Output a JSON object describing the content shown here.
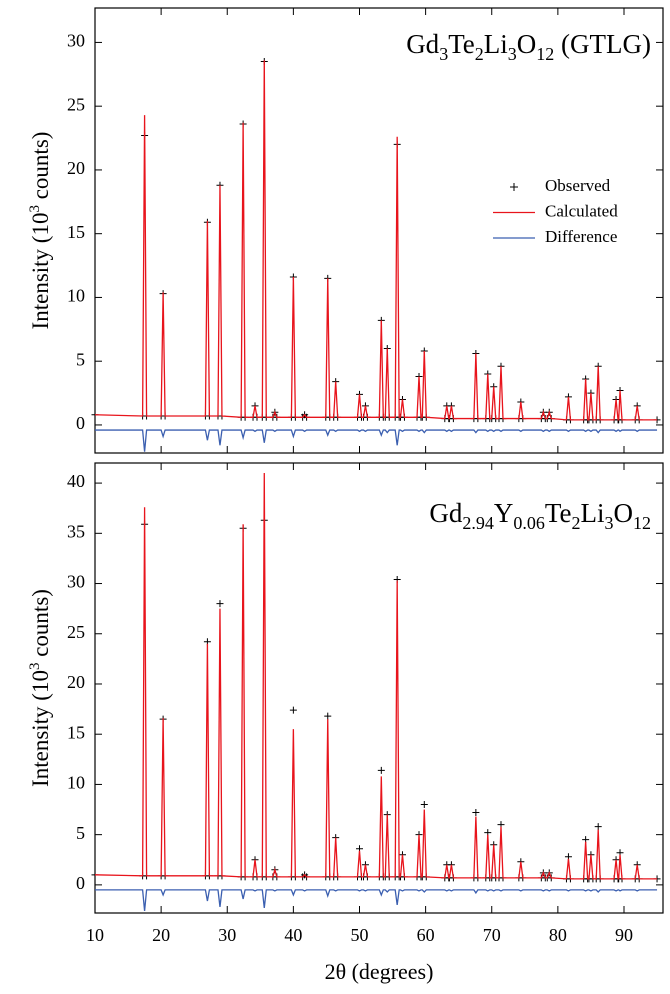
{
  "chart_data": [
    {
      "type": "line",
      "annotation": [
        "Gd",
        "3",
        "Te",
        "2",
        "Li",
        "3",
        "O",
        "12",
        " (GTLG)"
      ],
      "ylabel": [
        "Intensity (10",
        "3",
        " counts)"
      ],
      "xlim": [
        10,
        95.9
      ],
      "ylim": [
        -2.2,
        32.7
      ],
      "xticks": [
        10,
        20,
        30,
        40,
        50,
        60,
        70,
        80,
        90
      ],
      "xticklabels": false,
      "yticks": [
        0,
        5,
        10,
        15,
        20,
        25,
        30
      ],
      "legend": "right",
      "x": [
        10,
        17.2,
        17.5,
        17.8,
        20.0,
        20.3,
        20.6,
        26.7,
        27.0,
        27.3,
        28.6,
        28.9,
        29.2,
        32.1,
        32.4,
        32.7,
        33.9,
        34.2,
        34.5,
        35.3,
        35.6,
        35.9,
        36.9,
        37.2,
        37.5,
        39.7,
        40.0,
        40.3,
        41.4,
        41.7,
        42.0,
        44.9,
        45.2,
        45.5,
        46.1,
        46.4,
        46.7,
        49.7,
        50.0,
        50.3,
        50.6,
        50.9,
        51.2,
        53.0,
        53.3,
        53.6,
        53.9,
        54.2,
        54.5,
        55.4,
        55.7,
        56.0,
        56.2,
        56.5,
        56.8,
        58.7,
        59.0,
        59.3,
        59.5,
        59.8,
        60.1,
        62.9,
        63.2,
        63.5,
        63.6,
        63.9,
        64.2,
        67.3,
        67.6,
        67.9,
        69.1,
        69.4,
        69.7,
        70.0,
        70.3,
        70.6,
        71.1,
        71.4,
        71.7,
        74.1,
        74.4,
        74.7,
        77.5,
        77.8,
        78.1,
        78.4,
        78.7,
        79.0,
        81.3,
        81.6,
        81.9,
        83.9,
        84.2,
        84.5,
        84.7,
        85.0,
        85.3,
        85.8,
        86.1,
        86.4,
        88.5,
        88.8,
        89.1,
        89.2,
        89.4,
        89.7,
        91.7,
        92.0,
        92.3,
        95
      ],
      "series": [
        {
          "name": "Observed",
          "color": "#000000",
          "marker": "+",
          "values": [
            0.8,
            0.7,
            22.7,
            0.7,
            0.7,
            10.3,
            0.7,
            0.7,
            15.9,
            0.7,
            0.7,
            18.8,
            0.7,
            0.6,
            23.6,
            0.6,
            0.6,
            1.5,
            0.6,
            0.6,
            28.5,
            0.6,
            0.6,
            1,
            0.6,
            0.6,
            11.6,
            0.6,
            0.6,
            0.8,
            0.6,
            0.6,
            11.5,
            0.6,
            0.6,
            3.4,
            0.6,
            0.6,
            2.4,
            0.6,
            0.6,
            1.5,
            0.6,
            0.6,
            8.2,
            0.6,
            0.6,
            6,
            0.6,
            0.6,
            22,
            0.6,
            0.6,
            2,
            0.6,
            0.6,
            3.8,
            0.6,
            0.6,
            5.8,
            0.6,
            0.5,
            1.5,
            0.5,
            0.5,
            1.5,
            0.5,
            0.5,
            5.6,
            0.5,
            0.5,
            4,
            0.5,
            0.5,
            3,
            0.5,
            0.5,
            4.6,
            0.5,
            0.5,
            1.8,
            0.5,
            0.5,
            1,
            0.5,
            0.5,
            1,
            0.5,
            0.4,
            2.2,
            0.4,
            0.4,
            3.6,
            0.4,
            0.4,
            2.5,
            0.4,
            0.4,
            4.6,
            0.4,
            0.4,
            2,
            0.4,
            0.4,
            2.7,
            0.4,
            0.4,
            1.5,
            0.4,
            0.4
          ]
        },
        {
          "name": "Calculated",
          "color": "#e8141c",
          "values": [
            0.8,
            0.7,
            24.3,
            0.7,
            0.7,
            10.4,
            0.7,
            0.7,
            16,
            0.7,
            0.7,
            18.8,
            0.7,
            0.6,
            23.7,
            0.6,
            0.6,
            1.5,
            0.6,
            0.6,
            28.6,
            0.6,
            0.6,
            1,
            0.6,
            0.6,
            11.6,
            0.6,
            0.6,
            0.8,
            0.6,
            0.6,
            11.5,
            0.6,
            0.6,
            3.4,
            0.6,
            0.6,
            2.4,
            0.6,
            0.6,
            1.5,
            0.6,
            0.6,
            8.2,
            0.6,
            0.6,
            6,
            0.6,
            0.6,
            22.6,
            0.6,
            0.6,
            2,
            0.6,
            0.6,
            3.8,
            0.6,
            0.6,
            5.8,
            0.6,
            0.5,
            1.5,
            0.5,
            0.5,
            1.5,
            0.5,
            0.5,
            5.6,
            0.5,
            0.5,
            4,
            0.5,
            0.5,
            3,
            0.5,
            0.5,
            4.6,
            0.5,
            0.5,
            1.8,
            0.5,
            0.5,
            1,
            0.5,
            0.5,
            1,
            0.5,
            0.4,
            2.2,
            0.4,
            0.4,
            3.6,
            0.4,
            0.4,
            2.5,
            0.4,
            0.4,
            4.6,
            0.4,
            0.4,
            2,
            0.4,
            0.4,
            2.7,
            0.4,
            0.4,
            1.5,
            0.4,
            0.4
          ]
        },
        {
          "name": "Difference",
          "color": "#3b5fb0",
          "values": [
            -0.4,
            -0.4,
            -2.1,
            -0.4,
            -0.4,
            -0.9,
            -0.4,
            -0.4,
            -1.2,
            -0.4,
            -0.4,
            -1.6,
            -0.4,
            -0.4,
            -1,
            -0.4,
            -0.4,
            -0.5,
            -0.4,
            -0.4,
            -1.4,
            -0.4,
            -0.4,
            -0.5,
            -0.4,
            -0.4,
            -0.9,
            -0.4,
            -0.4,
            -0.5,
            -0.4,
            -0.4,
            -0.8,
            -0.4,
            -0.4,
            -0.5,
            -0.4,
            -0.4,
            -0.5,
            -0.4,
            -0.4,
            -0.5,
            -0.4,
            -0.4,
            -0.8,
            -0.4,
            -0.4,
            -0.6,
            -0.4,
            -0.4,
            -1.6,
            -0.4,
            -0.4,
            -0.5,
            -0.4,
            -0.4,
            -0.5,
            -0.4,
            -0.4,
            -0.6,
            -0.4,
            -0.4,
            -0.5,
            -0.4,
            -0.4,
            -0.5,
            -0.4,
            -0.4,
            -0.6,
            -0.4,
            -0.4,
            -0.5,
            -0.4,
            -0.4,
            -0.5,
            -0.4,
            -0.4,
            -0.5,
            -0.4,
            -0.4,
            -0.5,
            -0.4,
            -0.4,
            -0.5,
            -0.4,
            -0.4,
            -0.5,
            -0.4,
            -0.4,
            -0.5,
            -0.4,
            -0.4,
            -0.5,
            -0.4,
            -0.4,
            -0.5,
            -0.4,
            -0.4,
            -0.6,
            -0.4,
            -0.4,
            -0.5,
            -0.4,
            -0.4,
            -0.5,
            -0.4,
            -0.4,
            -0.5,
            -0.4,
            -0.4
          ]
        }
      ]
    },
    {
      "type": "line",
      "annotation": [
        "Gd",
        "2.94",
        "Y",
        "0.06",
        "Te",
        "2",
        "Li",
        "3",
        "O",
        "12"
      ],
      "ylabel": [
        "Intensity (10",
        "3",
        " counts)"
      ],
      "xlabel": "2θ (degrees)",
      "xlim": [
        10,
        95.9
      ],
      "ylim": [
        -2.8,
        42
      ],
      "xticks": [
        10,
        20,
        30,
        40,
        50,
        60,
        70,
        80,
        90
      ],
      "xticklabels": true,
      "yticks": [
        0,
        5,
        10,
        15,
        20,
        25,
        30,
        35,
        40
      ],
      "x": [
        10,
        17.2,
        17.5,
        17.8,
        20.0,
        20.3,
        20.6,
        26.7,
        27.0,
        27.3,
        28.6,
        28.9,
        29.2,
        32.1,
        32.4,
        32.7,
        33.9,
        34.2,
        34.5,
        35.3,
        35.6,
        35.9,
        36.9,
        37.2,
        37.5,
        39.7,
        40.0,
        40.3,
        41.4,
        41.7,
        42.0,
        44.9,
        45.2,
        45.5,
        46.1,
        46.4,
        46.7,
        49.7,
        50.0,
        50.3,
        50.6,
        50.9,
        51.2,
        53.0,
        53.3,
        53.6,
        53.9,
        54.2,
        54.5,
        55.4,
        55.7,
        56.0,
        56.2,
        56.5,
        56.8,
        58.7,
        59.0,
        59.3,
        59.5,
        59.8,
        60.1,
        62.9,
        63.2,
        63.5,
        63.6,
        63.9,
        64.2,
        67.3,
        67.6,
        67.9,
        69.1,
        69.4,
        69.7,
        70.0,
        70.3,
        70.6,
        71.1,
        71.4,
        71.7,
        74.1,
        74.4,
        74.7,
        77.5,
        77.8,
        78.1,
        78.4,
        78.7,
        79.0,
        81.3,
        81.6,
        81.9,
        83.9,
        84.2,
        84.5,
        84.7,
        85.0,
        85.3,
        85.8,
        86.1,
        86.4,
        88.5,
        88.8,
        89.1,
        89.2,
        89.4,
        89.7,
        91.7,
        92.0,
        92.3,
        95
      ],
      "series": [
        {
          "name": "Observed",
          "color": "#000000",
          "marker": "+",
          "values": [
            1,
            0.9,
            35.9,
            0.9,
            0.9,
            16.5,
            0.9,
            0.9,
            24.2,
            0.9,
            0.9,
            28,
            0.9,
            0.8,
            35.5,
            0.8,
            0.8,
            2.5,
            0.8,
            0.8,
            36.3,
            0.8,
            0.8,
            1.5,
            0.8,
            0.8,
            17.4,
            0.8,
            0.8,
            1,
            0.8,
            0.8,
            16.8,
            0.8,
            0.8,
            4.7,
            0.8,
            0.8,
            3.6,
            0.8,
            0.8,
            2,
            0.8,
            0.8,
            11.4,
            0.8,
            0.8,
            7,
            0.8,
            0.8,
            30.4,
            0.8,
            0.8,
            3,
            0.8,
            0.8,
            5,
            0.8,
            0.8,
            8,
            0.8,
            0.7,
            2,
            0.7,
            0.7,
            2,
            0.7,
            0.7,
            7.2,
            0.7,
            0.7,
            5.2,
            0.7,
            0.7,
            4,
            0.7,
            0.7,
            6,
            0.7,
            0.7,
            2.3,
            0.7,
            0.7,
            1.2,
            0.7,
            0.7,
            1.2,
            0.7,
            0.6,
            2.8,
            0.6,
            0.6,
            4.5,
            0.6,
            0.6,
            3,
            0.6,
            0.6,
            5.8,
            0.6,
            0.6,
            2.5,
            0.6,
            0.6,
            3.2,
            0.6,
            0.6,
            2,
            0.6,
            0.6
          ]
        },
        {
          "name": "Calculated",
          "color": "#e8141c",
          "values": [
            1,
            0.9,
            37.6,
            0.9,
            0.9,
            16.6,
            0.9,
            0.9,
            24,
            0.9,
            0.9,
            27.5,
            0.9,
            0.8,
            35.9,
            0.8,
            0.8,
            2.5,
            0.8,
            0.8,
            41,
            0.8,
            0.8,
            1.5,
            0.8,
            0.8,
            15.5,
            0.8,
            0.8,
            1,
            0.8,
            0.8,
            16.5,
            0.8,
            0.8,
            4.7,
            0.8,
            0.8,
            3.4,
            0.8,
            0.8,
            2,
            0.8,
            0.8,
            10.8,
            0.8,
            0.8,
            7,
            0.8,
            0.8,
            30.3,
            0.8,
            0.8,
            3,
            0.8,
            0.8,
            5,
            0.8,
            0.8,
            7.5,
            0.8,
            0.7,
            2,
            0.7,
            0.7,
            2,
            0.7,
            0.7,
            6.8,
            0.7,
            0.7,
            5,
            0.7,
            0.7,
            4,
            0.7,
            0.7,
            5.8,
            0.7,
            0.7,
            2.3,
            0.7,
            0.7,
            1.2,
            0.7,
            0.7,
            1.2,
            0.7,
            0.6,
            2.6,
            0.6,
            0.6,
            4.3,
            0.6,
            0.6,
            3,
            0.6,
            0.6,
            5.5,
            0.6,
            0.6,
            2.5,
            0.6,
            0.6,
            3,
            0.6,
            0.6,
            2,
            0.6,
            0.6
          ]
        },
        {
          "name": "Difference",
          "color": "#3b5fb0",
          "values": [
            -0.5,
            -0.5,
            -2.6,
            -0.5,
            -0.5,
            -1,
            -0.5,
            -0.5,
            -1.6,
            -0.5,
            -0.5,
            -2.2,
            -0.5,
            -0.5,
            -1.4,
            -0.5,
            -0.5,
            -0.6,
            -0.5,
            -0.5,
            -2.3,
            -0.5,
            -0.5,
            -0.6,
            -0.5,
            -0.5,
            -1,
            -0.5,
            -0.5,
            -0.6,
            -0.5,
            -0.5,
            -1.1,
            -0.5,
            -0.5,
            -0.6,
            -0.5,
            -0.5,
            -0.6,
            -0.5,
            -0.5,
            -0.6,
            -0.5,
            -0.5,
            -1,
            -0.5,
            -0.5,
            -0.7,
            -0.5,
            -0.5,
            -2,
            -0.5,
            -0.5,
            -0.6,
            -0.5,
            -0.5,
            -0.6,
            -0.5,
            -0.5,
            -0.7,
            -0.5,
            -0.5,
            -0.6,
            -0.5,
            -0.5,
            -0.6,
            -0.5,
            -0.5,
            -0.8,
            -0.5,
            -0.5,
            -0.6,
            -0.5,
            -0.5,
            -0.6,
            -0.5,
            -0.5,
            -0.6,
            -0.5,
            -0.5,
            -0.6,
            -0.5,
            -0.5,
            -0.6,
            -0.5,
            -0.5,
            -0.6,
            -0.5,
            -0.5,
            -0.6,
            -0.5,
            -0.5,
            -0.6,
            -0.5,
            -0.5,
            -0.6,
            -0.5,
            -0.5,
            -0.7,
            -0.5,
            -0.5,
            -0.6,
            -0.5,
            -0.5,
            -0.6,
            -0.5,
            -0.5,
            -0.6,
            -0.5,
            -0.5
          ]
        }
      ]
    }
  ]
}
